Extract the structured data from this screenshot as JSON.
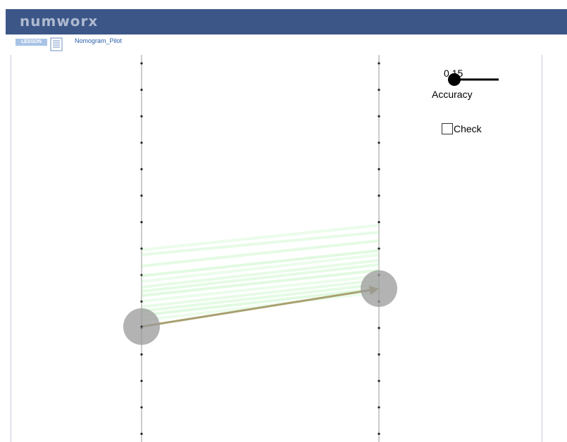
{
  "header": {
    "logo": "numworx"
  },
  "lesson": {
    "badge": "LESSON",
    "name": "Nomogram_Pilot"
  },
  "controls": {
    "accuracy_value": "0.15",
    "accuracy_label": "Accuracy",
    "check_label": "Check",
    "check_checked": false
  },
  "colors": {
    "header_bg": "#3c5688",
    "arrow": "#a8a070",
    "trail": "#90ee90",
    "handle": "#9a9a9a"
  }
}
